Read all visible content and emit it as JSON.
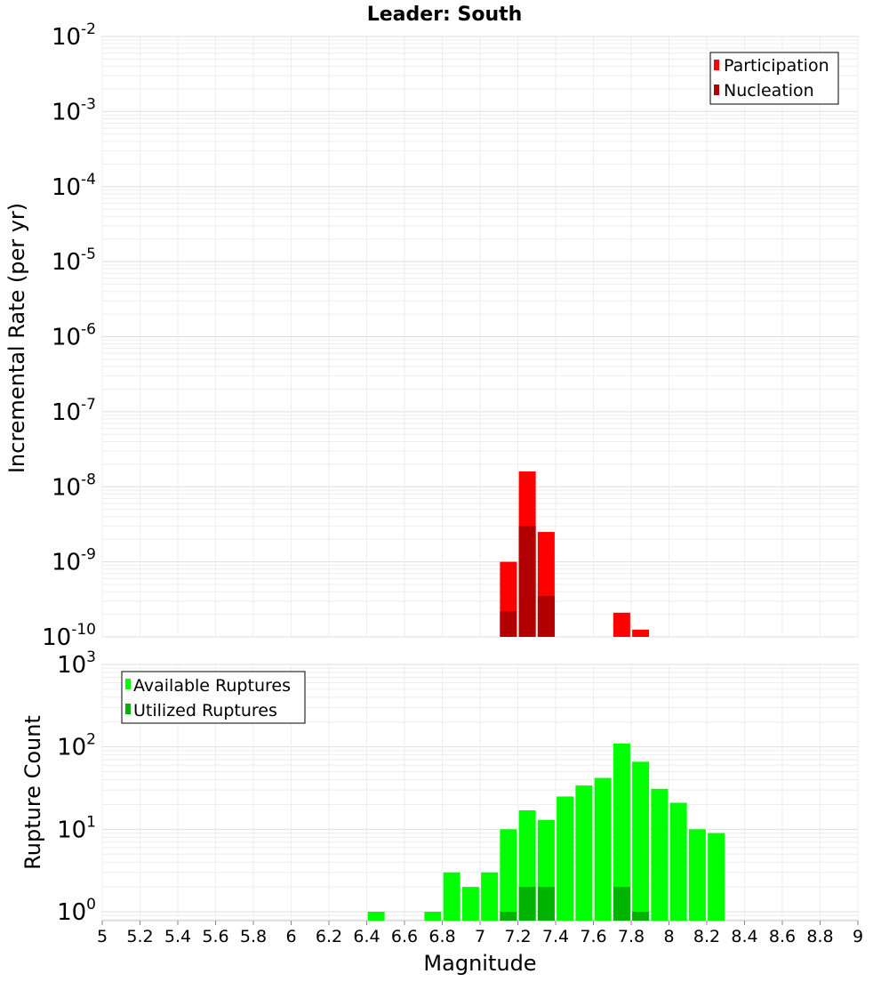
{
  "title": "Leader: South",
  "chart_data": [
    {
      "type": "bar",
      "scale": "log",
      "ylabel": "Incremental Rate (per yr)",
      "ylim": [
        1e-10,
        0.01
      ],
      "xlim": [
        5,
        9
      ],
      "y_ticks": [
        {
          "exp": "-2",
          "value": 0.01
        },
        {
          "exp": "-3",
          "value": 0.001
        },
        {
          "exp": "-4",
          "value": 0.0001
        },
        {
          "exp": "-5",
          "value": 1e-05
        },
        {
          "exp": "-6",
          "value": 1e-06
        },
        {
          "exp": "-7",
          "value": 1e-07
        },
        {
          "exp": "-8",
          "value": 1e-08
        },
        {
          "exp": "-9",
          "value": 1e-09
        },
        {
          "exp": "-10",
          "value": 1e-10
        }
      ],
      "legend": {
        "placement": "top-right",
        "entries": [
          {
            "label": "Participation",
            "color": "#ff0000"
          },
          {
            "label": "Nucleation",
            "color": "#b30000"
          }
        ]
      },
      "series": [
        {
          "name": "Participation",
          "color": "#ff0000",
          "points": [
            {
              "x": 7.15,
              "y": 1e-09
            },
            {
              "x": 7.25,
              "y": 1.6e-08
            },
            {
              "x": 7.35,
              "y": 2.5e-09
            },
            {
              "x": 7.75,
              "y": 2.1e-10
            },
            {
              "x": 7.85,
              "y": 1.25e-10
            }
          ]
        },
        {
          "name": "Nucleation",
          "color": "#b30000",
          "points": [
            {
              "x": 7.15,
              "y": 2.2e-10
            },
            {
              "x": 7.25,
              "y": 3e-09
            },
            {
              "x": 7.35,
              "y": 3.5e-10
            }
          ]
        }
      ]
    },
    {
      "type": "bar",
      "scale": "log",
      "ylabel": "Rupture Count",
      "xlabel": "Magnitude",
      "ylim": [
        0.78,
        1000
      ],
      "xlim": [
        5,
        9
      ],
      "y_ticks": [
        {
          "exp": "3",
          "value": 1000
        },
        {
          "exp": "2",
          "value": 100
        },
        {
          "exp": "1",
          "value": 10
        },
        {
          "exp": "0",
          "value": 1
        }
      ],
      "x_ticks": [
        "5",
        "5.2",
        "5.4",
        "5.6",
        "5.8",
        "6",
        "6.2",
        "6.4",
        "6.6",
        "6.8",
        "7",
        "7.2",
        "7.4",
        "7.6",
        "7.8",
        "8",
        "8.2",
        "8.4",
        "8.6",
        "8.8",
        "9"
      ],
      "legend": {
        "placement": "top-left",
        "entries": [
          {
            "label": "Available Ruptures",
            "color": "#00ff00"
          },
          {
            "label": "Utilized Ruptures",
            "color": "#00b300"
          }
        ]
      },
      "series": [
        {
          "name": "Available Ruptures",
          "color": "#00ff00",
          "points": [
            {
              "x": 6.45,
              "y": 1
            },
            {
              "x": 6.75,
              "y": 1
            },
            {
              "x": 6.85,
              "y": 3
            },
            {
              "x": 6.95,
              "y": 2
            },
            {
              "x": 7.05,
              "y": 3
            },
            {
              "x": 7.15,
              "y": 10
            },
            {
              "x": 7.25,
              "y": 17
            },
            {
              "x": 7.35,
              "y": 13
            },
            {
              "x": 7.45,
              "y": 25
            },
            {
              "x": 7.55,
              "y": 34
            },
            {
              "x": 7.65,
              "y": 42
            },
            {
              "x": 7.75,
              "y": 110
            },
            {
              "x": 7.85,
              "y": 66
            },
            {
              "x": 7.95,
              "y": 31
            },
            {
              "x": 8.05,
              "y": 21
            },
            {
              "x": 8.15,
              "y": 10
            },
            {
              "x": 8.25,
              "y": 9
            }
          ]
        },
        {
          "name": "Utilized Ruptures",
          "color": "#00b300",
          "points": [
            {
              "x": 7.15,
              "y": 1
            },
            {
              "x": 7.25,
              "y": 2
            },
            {
              "x": 7.35,
              "y": 2
            },
            {
              "x": 7.75,
              "y": 2
            },
            {
              "x": 7.85,
              "y": 1
            }
          ]
        }
      ]
    }
  ]
}
